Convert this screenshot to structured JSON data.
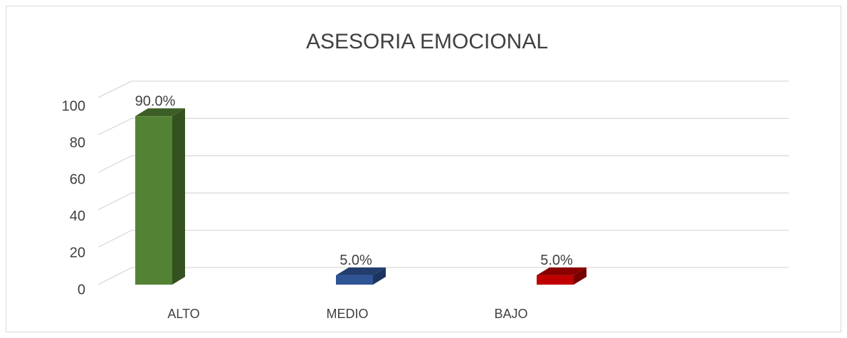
{
  "chart_data": {
    "type": "bar3d",
    "title": "ASESORIA EMOCIONAL",
    "categories": [
      "ALTO",
      "MEDIO",
      "BAJO"
    ],
    "values": [
      90,
      5,
      5
    ],
    "value_labels": [
      "90.0%",
      "5.0%",
      "5.0%"
    ],
    "colors": [
      "#548235",
      "#2f5597",
      "#c00000"
    ],
    "ylim": [
      0,
      100
    ],
    "yticks": [
      0,
      20,
      40,
      60,
      80,
      100
    ],
    "grid": true
  }
}
